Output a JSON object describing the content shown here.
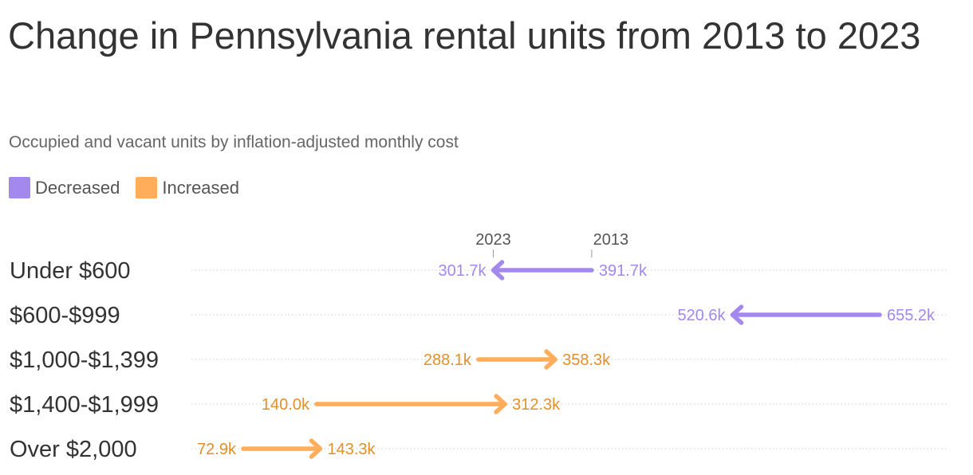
{
  "title": "Change in Pennsylvania rental units from 2013 to 2023",
  "subtitle": "Occupied and vacant units by inflation-adjusted monthly cost",
  "legend": [
    {
      "label": "Decreased",
      "color": "#a388ee"
    },
    {
      "label": "Increased",
      "color": "#ffad5a"
    }
  ],
  "colors": {
    "decreased_line": "#a388ee",
    "decreased_text": "#a388ee",
    "increased_line": "#ffad5a",
    "increased_text": "#e0912b",
    "gridline": "#cccccc"
  },
  "chart_data": {
    "type": "arrow",
    "unit": "k",
    "start_label": "2013",
    "end_label": "2023",
    "x_range": [
      72.9,
      655.2
    ],
    "gridlines": "dotted",
    "categories": [
      "Under $600",
      "$600-$999",
      "$1,000-$1,399",
      "$1,400-$1,999",
      "Over $2,000"
    ],
    "series": [
      {
        "name": "2013",
        "values": [
          391.7,
          655.2,
          288.1,
          140.0,
          72.9
        ]
      },
      {
        "name": "2023",
        "values": [
          301.7,
          520.6,
          358.3,
          312.3,
          143.3
        ]
      }
    ],
    "value_labels_2013": [
      "391.7k",
      "655.2k",
      "288.1k",
      "140.0k",
      "72.9k"
    ],
    "value_labels_2023": [
      "301.7k",
      "520.6k",
      "358.3k",
      "312.3k",
      "143.3k"
    ],
    "direction": [
      "decreased",
      "decreased",
      "increased",
      "increased",
      "increased"
    ]
  }
}
